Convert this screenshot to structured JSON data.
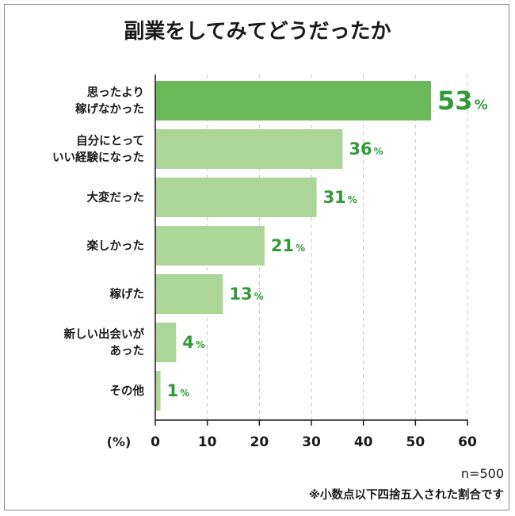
{
  "chart_data": {
    "type": "bar",
    "orientation": "horizontal",
    "title": "副業をしてみてどうだったか",
    "categories": [
      [
        "思ったより",
        "稼げなかった"
      ],
      [
        "自分にとって",
        "いい経験になった"
      ],
      [
        "大変だった"
      ],
      [
        "楽しかった"
      ],
      [
        "稼げた"
      ],
      [
        "新しい出会いが",
        "あった"
      ],
      [
        "その他"
      ]
    ],
    "values": [
      53,
      36,
      31,
      21,
      13,
      4,
      1
    ],
    "value_suffix": "%",
    "xlim": [
      0,
      60
    ],
    "ticks": [
      0,
      10,
      20,
      30,
      40,
      50,
      60
    ],
    "xlabel": "(%)",
    "grid": true,
    "highlight_index": 0
  },
  "colors": {
    "bar_highlight": "#6ab85a",
    "bar_normal": "#acd598",
    "value_text": "#2f9a38",
    "axis": "#1a1a1a",
    "grid": "#c8c8c8",
    "frame": "#8a8a8a"
  },
  "notes": {
    "sample_size": "n=500",
    "rounding": "※小数点以下四捨五入された割合です"
  }
}
